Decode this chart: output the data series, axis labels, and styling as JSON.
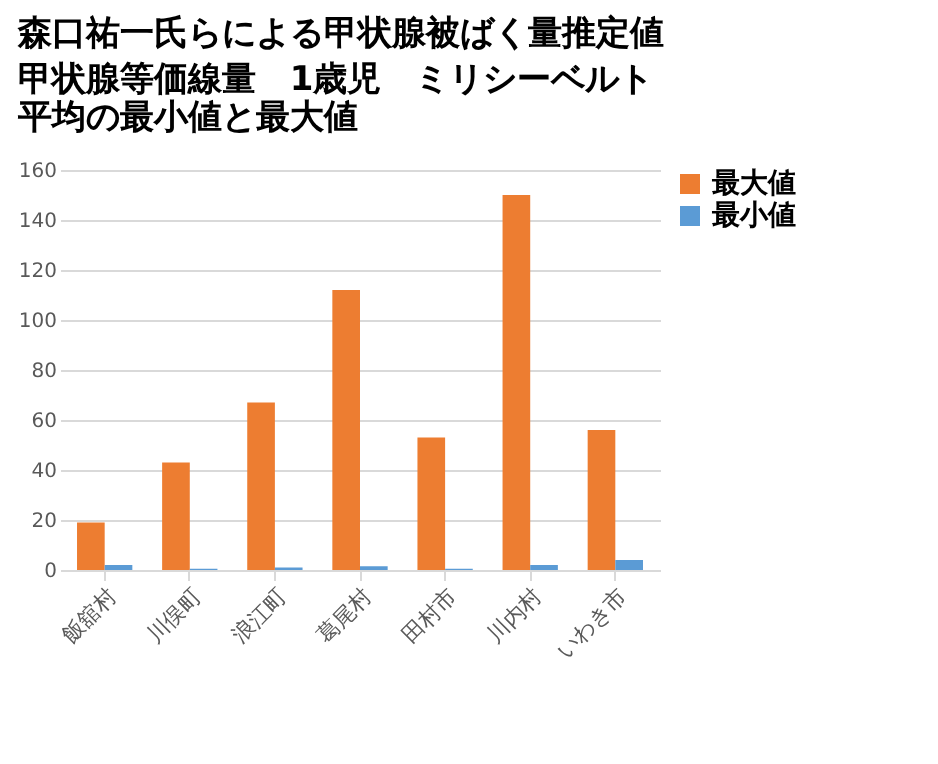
{
  "chart_data": {
    "type": "bar",
    "title": "森口祐一氏らによる甲状腺被ばく量推定値",
    "subtitle": "甲状腺等価線量　1歳児　ミリシーベルト",
    "annotations": [
      "平均の最小値と最大値"
    ],
    "categories": [
      "飯舘村",
      "川俣町",
      "浪江町",
      "葛尾村",
      "田村市",
      "川内村",
      "いわき市"
    ],
    "series": [
      {
        "name": "最大値",
        "color": "#ed7d31",
        "values": [
          19,
          43,
          67,
          112,
          53,
          150,
          56
        ]
      },
      {
        "name": "最小値",
        "color": "#5b9bd5",
        "values": [
          2,
          0.5,
          1,
          1.5,
          0.5,
          2,
          4
        ]
      }
    ],
    "ylim": [
      0,
      160
    ],
    "yticks": [
      0,
      20,
      40,
      60,
      80,
      100,
      120,
      140,
      160
    ],
    "grid": true,
    "legend": "right"
  }
}
